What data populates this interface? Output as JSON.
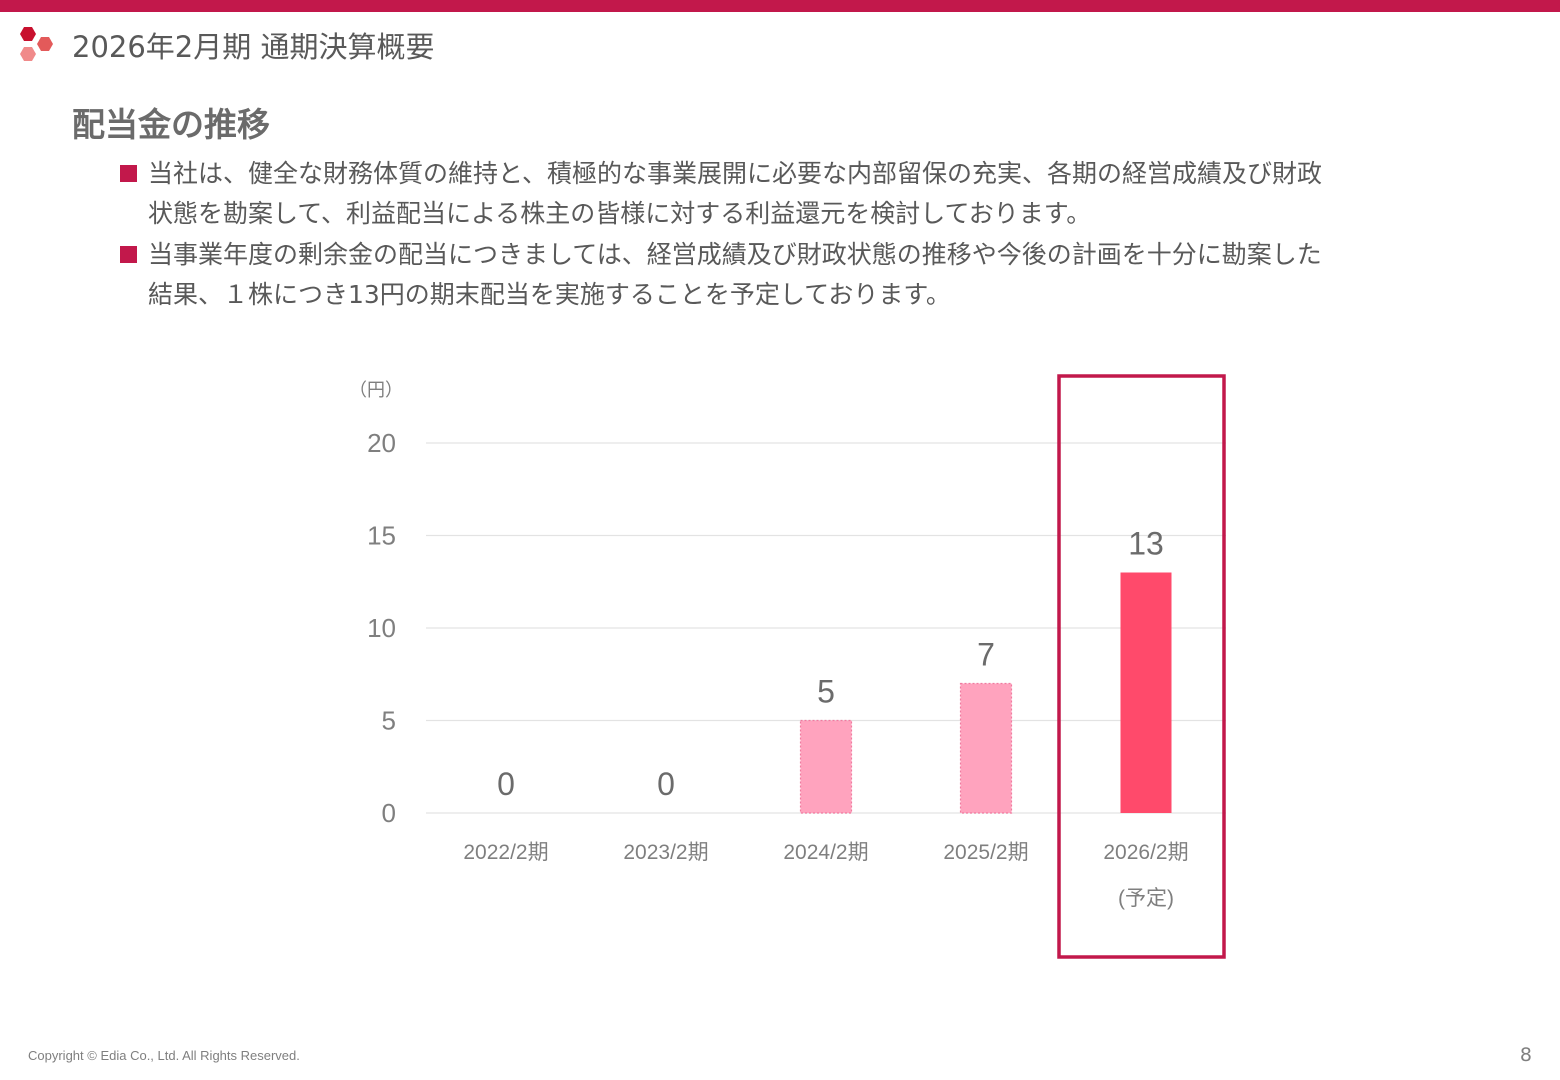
{
  "header": {
    "title": "2026年2月期 通期決算概要"
  },
  "section": {
    "title": "配当金の推移"
  },
  "bullets": [
    {
      "text": "当社は、健全な財務体質の維持と、積極的な事業展開に必要な内部留保の充実、各期の経営成績及び財政\n状態を勘案して、利益配当による株主の皆様に対する利益還元を検討しております。"
    },
    {
      "text": "当事業年度の剰余金の配当につきましては、経営成績及び財政状態の推移や今後の計画を十分に勘案した\n結果、１株につき13円の期末配当を実施することを予定しております。"
    }
  ],
  "chart_data": {
    "type": "bar",
    "unit_label": "（円）",
    "categories": [
      "2022/2期",
      "2023/2期",
      "2024/2期",
      "2025/2期",
      "2026/2期"
    ],
    "category_notes": [
      "",
      "",
      "",
      "",
      "(予定)"
    ],
    "values": [
      0,
      0,
      5,
      7,
      13
    ],
    "data_labels": [
      "0",
      "0",
      "5",
      "7",
      "13"
    ],
    "yticks": [
      "0",
      "5",
      "10",
      "15",
      "20"
    ],
    "ylim": [
      0,
      20
    ],
    "grid": true,
    "highlight_index": 4,
    "colors": {
      "actual": "#FFA3BE",
      "forecast": "#FF4A6B",
      "highlight_border": "#C2184B",
      "grid": "#e3e3e3",
      "text": "#7f7f7f"
    }
  },
  "footer": {
    "copyright": "Copyright © Edia Co., Ltd. All Rights Reserved.",
    "page": "8"
  }
}
